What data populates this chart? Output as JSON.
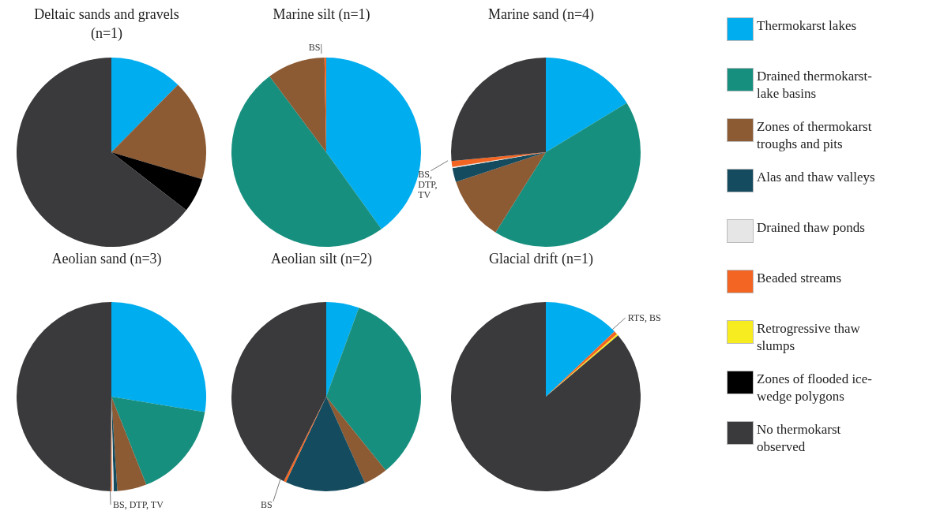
{
  "chart_data": [
    {
      "type": "pie",
      "title": "Deltaic sands and gravels (n=1)",
      "legend": "right",
      "categories": [
        "Thermokarst lakes",
        "Drained thermokarst-lake basins",
        "Zones of thermokarst troughs and pits",
        "Alas and thaw valleys",
        "Drained thaw ponds",
        "Beaded streams",
        "Retrogressive thaw slumps",
        "Zones of flooded ice-wedge polygons",
        "No thermokarst observed"
      ],
      "values": [
        12.4,
        0,
        17.2,
        0,
        0,
        0,
        0,
        5.9,
        64.5
      ],
      "colors": [
        "#00adef",
        "#178f7f",
        "#8c5a33",
        "#144b5f",
        "#e6e6e6",
        "#f26522",
        "#f7ec1f",
        "#000000",
        "#3a3a3c"
      ]
    },
    {
      "type": "pie",
      "title": "Marine silt (n=1)",
      "annotations": [
        "BS"
      ],
      "categories": [
        null,
        null,
        null,
        null,
        null,
        null,
        null,
        null,
        null
      ],
      "values": [
        40.1,
        49.7,
        9.9,
        0,
        0,
        0.3,
        0,
        0,
        0
      ],
      "colors": [
        "#00adef",
        "#178f7f",
        "#8c5a33",
        "#144b5f",
        "#e6e6e6",
        "#f26522",
        "#f7ec1f",
        "#000000",
        "#3a3a3c"
      ]
    },
    {
      "type": "pie",
      "title": "Marine sand (n=4)",
      "annotations": [
        "BS, DTP, TV"
      ],
      "categories": [
        null,
        null,
        null,
        null,
        null,
        null,
        null,
        null,
        null
      ],
      "values": [
        16.3,
        42.6,
        11.0,
        2.4,
        0.2,
        1.0,
        0,
        0,
        26.5
      ],
      "colors": [
        "#00adef",
        "#178f7f",
        "#8c5a33",
        "#144b5f",
        "#e6e6e6",
        "#f26522",
        "#f7ec1f",
        "#000000",
        "#3a3a3c"
      ]
    },
    {
      "type": "pie",
      "title": "Aeolian sand (n=3)",
      "annotations": [
        "BS, DTP, TV"
      ],
      "categories": [
        null,
        null,
        null,
        null,
        null,
        null,
        null,
        null,
        null
      ],
      "values": [
        27.6,
        16.4,
        5.0,
        0.6,
        0.3,
        0.2,
        0,
        0,
        49.9
      ],
      "colors": [
        "#00adef",
        "#178f7f",
        "#8c5a33",
        "#144b5f",
        "#e6e6e6",
        "#f26522",
        "#f7ec1f",
        "#000000",
        "#3a3a3c"
      ]
    },
    {
      "type": "pie",
      "title": "Aeolian silt (n=2)",
      "annotations": [
        "BS"
      ],
      "categories": [
        null,
        null,
        null,
        null,
        null,
        null,
        null,
        null,
        null
      ],
      "values": [
        5.6,
        33.6,
        4.1,
        13.7,
        0,
        0.4,
        0,
        0,
        42.6
      ],
      "colors": [
        "#00adef",
        "#178f7f",
        "#8c5a33",
        "#144b5f",
        "#e6e6e6",
        "#f26522",
        "#f7ec1f",
        "#000000",
        "#3a3a3c"
      ]
    },
    {
      "type": "pie",
      "title": "Glacial drift (n=1)",
      "annotations": [
        "RTS, BS"
      ],
      "categories": [
        null,
        null,
        null,
        null,
        null,
        null,
        null,
        null,
        null
      ],
      "values": [
        12.9,
        0,
        0,
        0,
        0,
        0.6,
        0.3,
        0,
        86.2
      ],
      "colors": [
        "#00adef",
        "#178f7f",
        "#8c5a33",
        "#144b5f",
        "#e6e6e6",
        "#f26522",
        "#f7ec1f",
        "#000000",
        "#3a3a3c"
      ]
    }
  ]
}
